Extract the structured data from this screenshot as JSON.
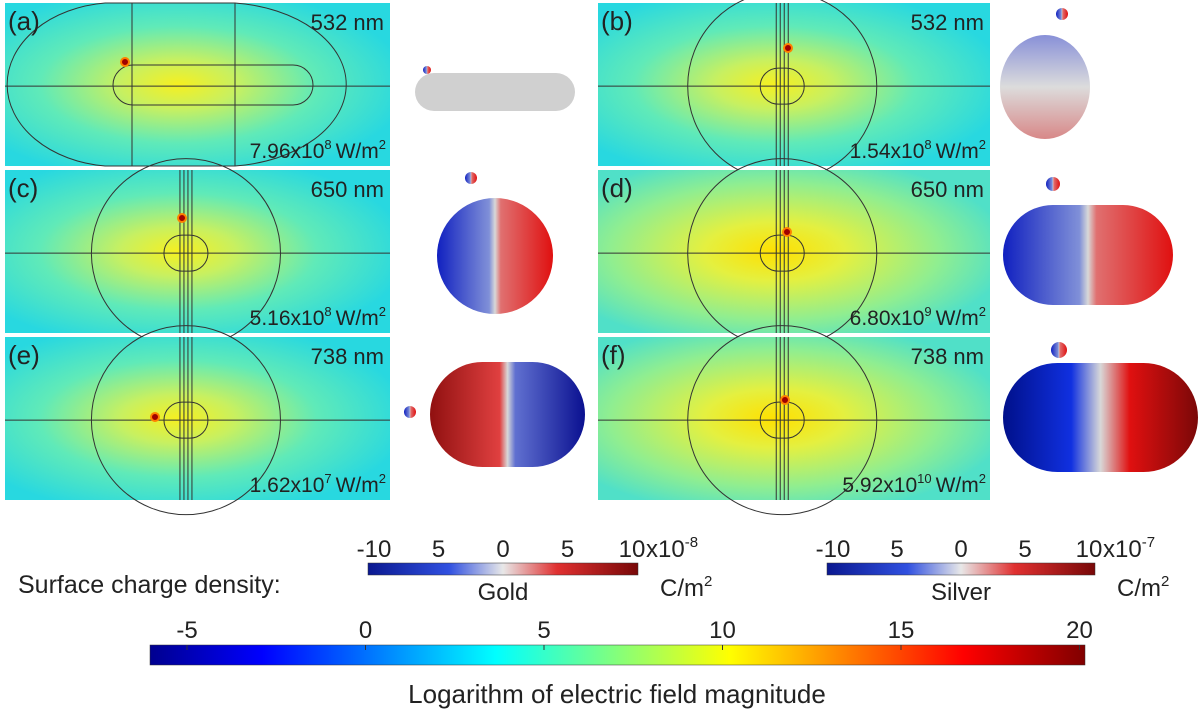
{
  "panels": [
    {
      "label": "(a)",
      "wavelength": "532 nm",
      "intensity": {
        "base": "7.96x10",
        "exponent": "8",
        "unit": "W/m",
        "unit_exponent": "2"
      }
    },
    {
      "label": "(b)",
      "wavelength": "532 nm",
      "intensity": {
        "base": "1.54x10",
        "exponent": "8",
        "unit": "W/m",
        "unit_exponent": "2"
      }
    },
    {
      "label": "(c)",
      "wavelength": "650 nm",
      "intensity": {
        "base": "5.16x10",
        "exponent": "8",
        "unit": "W/m",
        "unit_exponent": "2"
      }
    },
    {
      "label": "(d)",
      "wavelength": "650 nm",
      "intensity": {
        "base": "6.80x10",
        "exponent": "9",
        "unit": "W/m",
        "unit_exponent": "2"
      }
    },
    {
      "label": "(e)",
      "wavelength": "738 nm",
      "intensity": {
        "base": "1.62x10",
        "exponent": "7",
        "unit": "W/m",
        "unit_exponent": "2"
      }
    },
    {
      "label": "(f)",
      "wavelength": "738 nm",
      "intensity": {
        "base": "5.92x10",
        "exponent": "10",
        "unit": "W/m",
        "unit_exponent": "2"
      }
    }
  ],
  "charge_colorbars": {
    "title": "Surface charge density:",
    "gold": {
      "ticks": [
        "-10",
        "5",
        "0",
        "5",
        "10"
      ],
      "scale": "x10",
      "scale_exponent": "-8",
      "unit": "C/m",
      "unit_exponent": "2",
      "name": "Gold"
    },
    "silver": {
      "ticks": [
        "-10",
        "5",
        "0",
        "5",
        "10"
      ],
      "scale": "x10",
      "scale_exponent": "-7",
      "unit": "C/m",
      "unit_exponent": "2",
      "name": "Silver"
    }
  },
  "field_colorbar": {
    "ticks": [
      "-5",
      "0",
      "5",
      "10",
      "15",
      "20"
    ],
    "label": "Logarithm of electric field magnitude"
  }
}
